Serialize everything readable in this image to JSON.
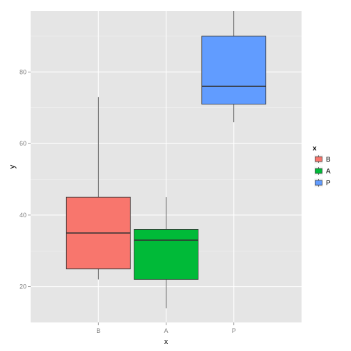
{
  "chart_data": {
    "type": "boxplot",
    "title": "",
    "xlabel": "x",
    "ylabel": "y",
    "categories": [
      "B",
      "A",
      "P"
    ],
    "ylim": [
      10,
      97
    ],
    "y_ticks": [
      20,
      40,
      60,
      80
    ],
    "grid": true,
    "legend": {
      "title": "x",
      "placement": "right",
      "entries": [
        "B",
        "A",
        "P"
      ]
    },
    "colors": {
      "B": "#F8766D",
      "A": "#00BA38",
      "P": "#619CFF"
    },
    "boxes": [
      {
        "category": "B",
        "min": 22,
        "q1": 25,
        "median": 35,
        "q3": 45,
        "max": 73
      },
      {
        "category": "A",
        "min": 14,
        "q1": 22,
        "median": 33,
        "q3": 36,
        "max": 45
      },
      {
        "category": "P",
        "min": 66,
        "q1": 71,
        "median": 76,
        "q3": 90,
        "max": 97
      }
    ]
  }
}
